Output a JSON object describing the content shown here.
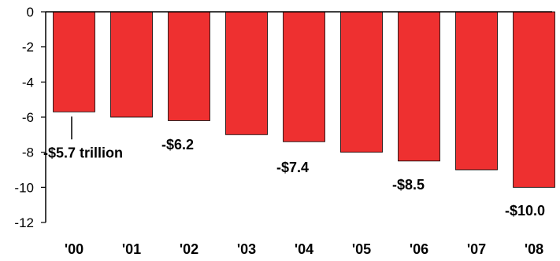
{
  "chart_data": {
    "type": "bar",
    "title": "",
    "xlabel": "",
    "ylabel": "",
    "categories": [
      "'00",
      "'01",
      "'02",
      "'03",
      "'04",
      "'05",
      "'06",
      "'07",
      "'08"
    ],
    "values": [
      -5.7,
      -6.0,
      -6.2,
      -7.0,
      -7.4,
      -8.0,
      -8.5,
      -9.0,
      -10.0
    ],
    "ylim": [
      -12,
      0
    ],
    "yticks": [
      0,
      -2,
      -4,
      -6,
      -8,
      -10,
      -12
    ],
    "ytick_labels": [
      "0",
      "-2",
      "-4",
      "-6",
      "-8",
      "-10",
      "-12"
    ],
    "grid": false,
    "legend": "none",
    "bar_color": "#ee3030",
    "data_labels": [
      {
        "category_index": 0,
        "text": "-$5.7 trillion"
      },
      {
        "category_index": 2,
        "text": "-$6.2"
      },
      {
        "category_index": 4,
        "text": "-$7.4"
      },
      {
        "category_index": 6,
        "text": "-$8.5"
      },
      {
        "category_index": 8,
        "text": "-$10.0"
      }
    ]
  }
}
